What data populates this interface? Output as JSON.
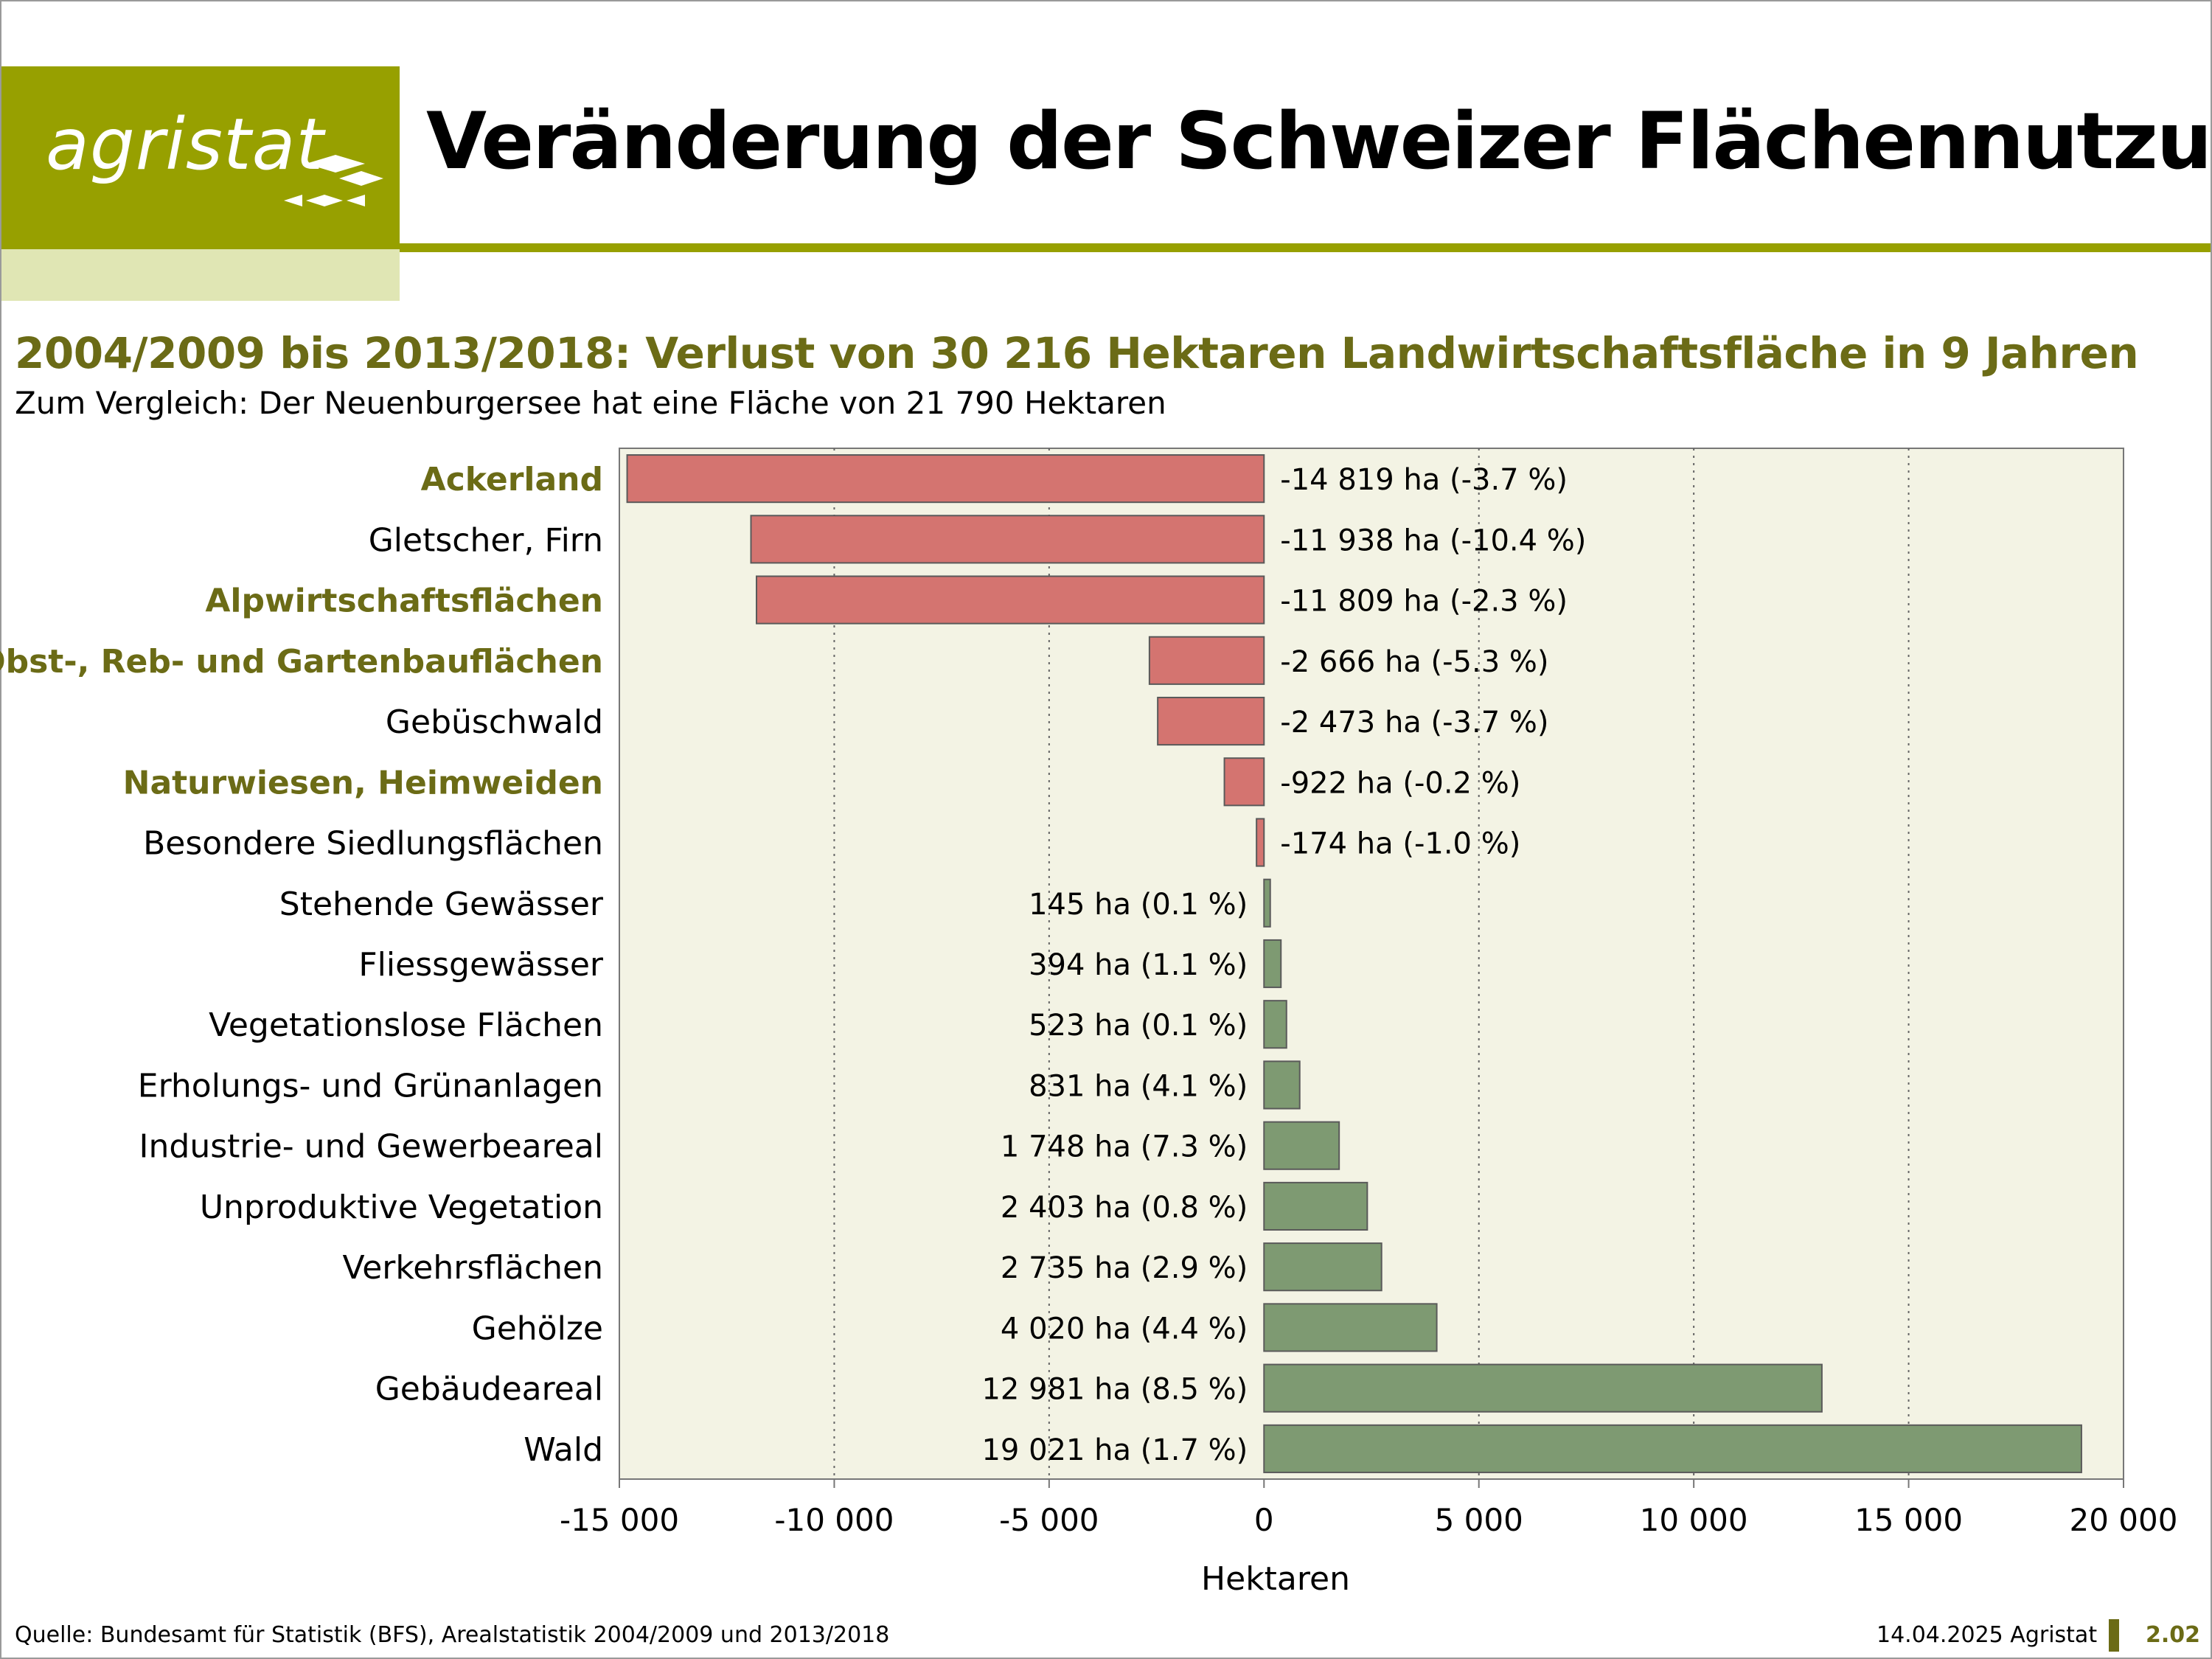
{
  "header": {
    "logo_text": "agristat",
    "title": "Veränderung der Schweizer Flächennutzung",
    "subtitle": "2004/2009 bis 2013/2018: Verlust von 30 216 Hektaren Landwirtschaftsfläche in 9 Jahren",
    "note": "Zum Vergleich: Der Neuenburgersee hat eine Fläche von 21 790 Hektaren"
  },
  "colors": {
    "brand": "#97a000",
    "brand_light": "#e0e6b4",
    "highlight_text": "#6b6b16",
    "negative_bar": "#d47470",
    "positive_bar": "#7e9a72",
    "plot_bg": "#f3f3e4"
  },
  "chart_data": {
    "type": "bar",
    "orientation": "horizontal",
    "xlabel": "Hektaren",
    "xlim": [
      -15000,
      20000
    ],
    "xticks": [
      -15000,
      -10000,
      -5000,
      0,
      5000,
      10000,
      15000,
      20000
    ],
    "xtick_labels": [
      "-15 000",
      "-10 000",
      "-5 000",
      "0",
      "5 000",
      "10 000",
      "15 000",
      "20 000"
    ],
    "grid": "vertical dotted",
    "categories": [
      {
        "label": "Ackerland",
        "value": -14819,
        "data_label": "-14 819 ha (-3.7 %)",
        "highlight": true
      },
      {
        "label": "Gletscher, Firn",
        "value": -11938,
        "data_label": "-11 938 ha (-10.4 %)",
        "highlight": false
      },
      {
        "label": "Alpwirtschaftsflächen",
        "value": -11809,
        "data_label": "-11 809 ha (-2.3 %)",
        "highlight": true
      },
      {
        "label": "Obst-, Reb- und Gartenbauflächen",
        "value": -2666,
        "data_label": "-2 666 ha (-5.3 %)",
        "highlight": true
      },
      {
        "label": "Gebüschwald",
        "value": -2473,
        "data_label": "-2 473 ha (-3.7 %)",
        "highlight": false
      },
      {
        "label": "Naturwiesen, Heimweiden",
        "value": -922,
        "data_label": "-922 ha (-0.2 %)",
        "highlight": true
      },
      {
        "label": "Besondere Siedlungsflächen",
        "value": -174,
        "data_label": "-174 ha (-1.0 %)",
        "highlight": false
      },
      {
        "label": "Stehende Gewässer",
        "value": 145,
        "data_label": "145 ha (0.1 %)",
        "highlight": false
      },
      {
        "label": "Fliessgewässer",
        "value": 394,
        "data_label": "394 ha (1.1 %)",
        "highlight": false
      },
      {
        "label": "Vegetationslose Flächen",
        "value": 523,
        "data_label": "523 ha (0.1 %)",
        "highlight": false
      },
      {
        "label": "Erholungs- und Grünanlagen",
        "value": 831,
        "data_label": "831 ha (4.1 %)",
        "highlight": false
      },
      {
        "label": "Industrie- und Gewerbeareal",
        "value": 1748,
        "data_label": "1 748 ha (7.3 %)",
        "highlight": false
      },
      {
        "label": "Unproduktive Vegetation",
        "value": 2403,
        "data_label": "2 403 ha (0.8 %)",
        "highlight": false
      },
      {
        "label": "Verkehrsflächen",
        "value": 2735,
        "data_label": "2 735 ha (2.9 %)",
        "highlight": false
      },
      {
        "label": "Gehölze",
        "value": 4020,
        "data_label": "4 020 ha (4.4 %)",
        "highlight": false
      },
      {
        "label": "Gebäudeareal",
        "value": 12981,
        "data_label": "12 981 ha (8.5 %)",
        "highlight": false
      },
      {
        "label": "Wald",
        "value": 19021,
        "data_label": "19 021 ha (1.7 %)",
        "highlight": false
      }
    ]
  },
  "footer": {
    "source": "Quelle: Bundesamt für Statistik (BFS), Arealstatistik 2004/2009 und 2013/2018",
    "date_org": "14.04.2025 Agristat",
    "page": "2.02"
  }
}
